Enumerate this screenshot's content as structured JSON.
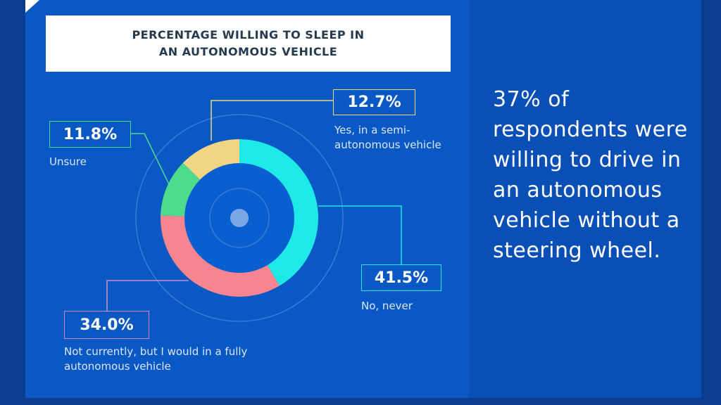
{
  "chart_data": {
    "type": "pie",
    "title": "PERCENTAGE WILLING TO SLEEP IN AN AUTONOMOUS VEHICLE",
    "slices": [
      {
        "label": "No, never",
        "value": 41.5,
        "display": "41.5%",
        "color": "#1de9e6"
      },
      {
        "label": "Not currently, but I would in a fully autonomous vehicle",
        "value": 34.0,
        "display": "34.0%",
        "color": "#f7858f"
      },
      {
        "label": "Unsure",
        "value": 11.8,
        "display": "11.8%",
        "color": "#4edb8b"
      },
      {
        "label": "Yes, in a semi-autonomous vehicle",
        "value": 12.7,
        "display": "12.7%",
        "color": "#f2d582"
      }
    ]
  },
  "side_text": "37% of respondents were willing to drive in an autonomous vehicle without a steering wheel."
}
